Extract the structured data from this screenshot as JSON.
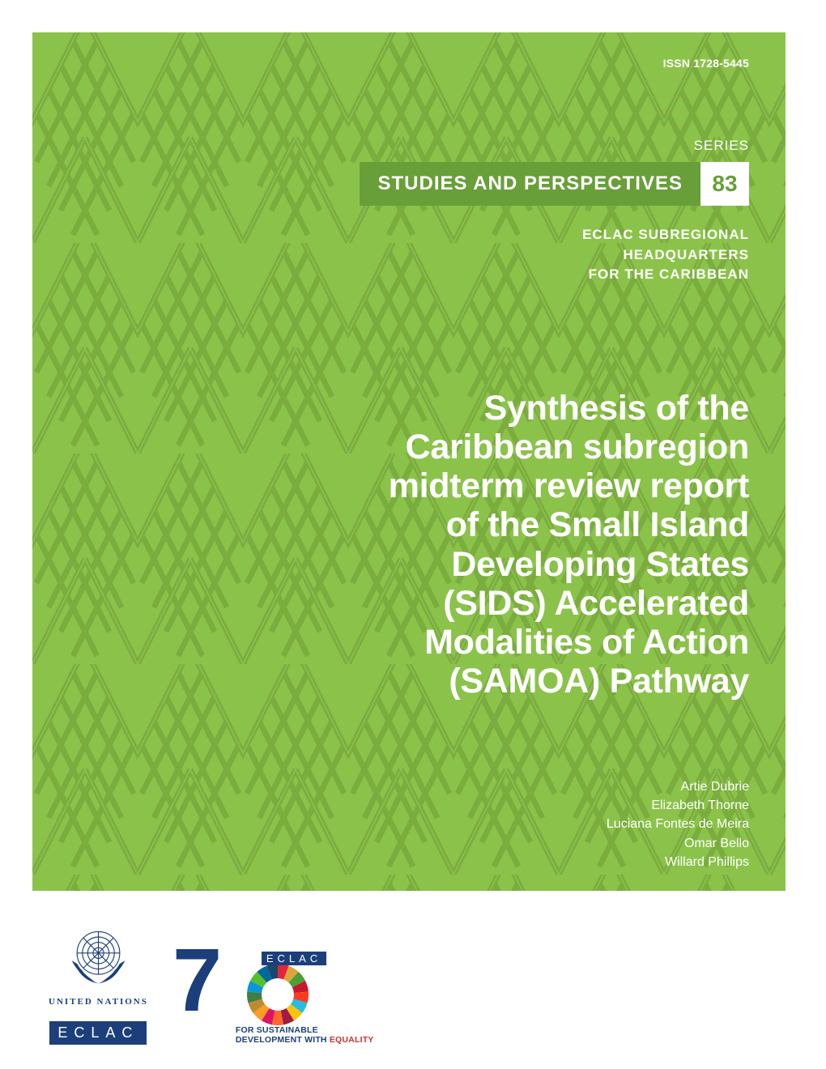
{
  "meta": {
    "issn": "ISSN 1728-5445",
    "series_label": "SERIES",
    "series_title": "STUDIES AND PERSPECTIVES",
    "series_number": "83",
    "subtitle": "ECLAC SUBREGIONAL\nHEADQUARTERS\nFOR THE CARIBBEAN"
  },
  "title": "Synthesis of the Caribbean subregion midterm review report of the Small Island Developing States (SIDS) Accelerated Modalities of Action (SAMOA) Pathway",
  "authors": [
    "Artie Dubrie",
    "Elizabeth Thorne",
    "Luciana Fontes de Meira",
    "Omar Bello",
    "Willard Phillips"
  ],
  "logos": {
    "un_text": "UNITED NATIONS",
    "eclac_badge": "ECLAC",
    "seventy_eclac": "ECLAC",
    "seventy_tag_line1": "FOR SUSTAINABLE",
    "seventy_tag_line2a": "DEVELOPMENT WITH ",
    "seventy_tag_line2b": "EQUALITY"
  },
  "colors": {
    "panel_bg": "#8bc34a",
    "panel_dark": "#7aad3e",
    "panel_light": "#9ccc5e",
    "bar_bg": "#689f38",
    "number_bg": "#ffffff",
    "number_fg": "#689f38",
    "text_white": "#ffffff",
    "un_blue": "#1c3f7c",
    "equality_red": "#d62f2f",
    "sdg_colors": [
      "#e5243b",
      "#dda63a",
      "#4c9f38",
      "#c5192d",
      "#ff3a21",
      "#26bde2",
      "#fcc30b",
      "#a21942",
      "#fd6925",
      "#dd1367",
      "#fd9d24",
      "#bf8b2e",
      "#3f7e44",
      "#0a97d9",
      "#56c02b",
      "#00689d",
      "#19486a"
    ]
  }
}
